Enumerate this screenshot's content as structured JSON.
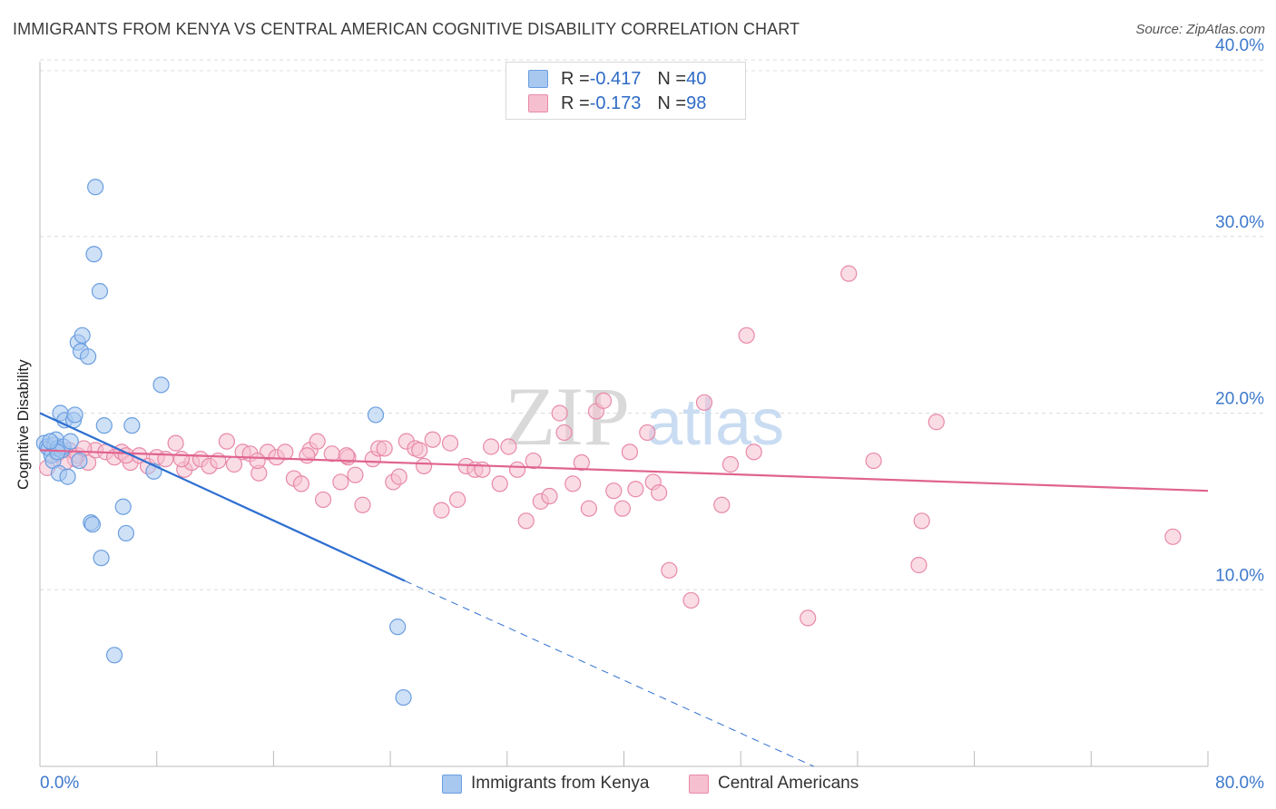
{
  "title": "IMMIGRANTS FROM KENYA VS CENTRAL AMERICAN COGNITIVE DISABILITY CORRELATION CHART",
  "source": "Source: ZipAtlas.com",
  "watermark": {
    "zip": "ZIP",
    "atlas": "atlas"
  },
  "legend_top": [
    {
      "r_label": "R = ",
      "r_value": "-0.417",
      "n_label": "N = ",
      "n_value": "40",
      "color": "#a8c8f0",
      "border": "#6a9ee0"
    },
    {
      "r_label": "R = ",
      "r_value": "-0.173",
      "n_label": "N = ",
      "n_value": "98",
      "color": "#f6bfd0",
      "border": "#e889a8"
    }
  ],
  "legend_bottom": [
    {
      "label": "Immigrants from Kenya",
      "color": "#a8c8f0",
      "border": "#6a9ee0"
    },
    {
      "label": "Central Americans",
      "color": "#f6bfd0",
      "border": "#e889a8"
    }
  ],
  "chart_data": {
    "type": "scatter",
    "title": "IMMIGRANTS FROM KENYA VS CENTRAL AMERICAN COGNITIVE DISABILITY CORRELATION CHART",
    "xlabel": "",
    "ylabel": "Cognitive Disability",
    "xlim": [
      0,
      80
    ],
    "ylim": [
      0,
      40
    ],
    "x_tick_labels": [
      "0.0%",
      "80.0%"
    ],
    "y_ticks": [
      10,
      20,
      30,
      40
    ],
    "y_tick_labels": [
      "10.0%",
      "20.0%",
      "30.0%",
      "40.0%"
    ],
    "grid": true,
    "legend": "top-center",
    "series": [
      {
        "name": "Immigrants from Kenya",
        "color": "#6a9ee0",
        "fill": "#a8c8f0",
        "trend": {
          "x0": 0,
          "y0": 20.0,
          "x1": 25,
          "y1": 10.5,
          "dash_to_x": 53,
          "dash_to_y": 0
        },
        "points": [
          [
            0.3,
            18.3
          ],
          [
            0.5,
            18.1
          ],
          [
            0.6,
            18.0
          ],
          [
            0.8,
            17.6
          ],
          [
            0.9,
            17.3
          ],
          [
            1.0,
            18.2
          ],
          [
            1.1,
            18.5
          ],
          [
            1.2,
            18.0
          ],
          [
            1.3,
            16.6
          ],
          [
            1.4,
            20.0
          ],
          [
            1.5,
            17.9
          ],
          [
            1.6,
            18.1
          ],
          [
            1.7,
            19.6
          ],
          [
            1.9,
            16.4
          ],
          [
            2.1,
            18.4
          ],
          [
            2.3,
            19.6
          ],
          [
            2.4,
            19.9
          ],
          [
            2.6,
            24.0
          ],
          [
            2.7,
            17.3
          ],
          [
            2.8,
            23.5
          ],
          [
            2.9,
            24.4
          ],
          [
            3.3,
            23.2
          ],
          [
            3.5,
            13.8
          ],
          [
            3.6,
            13.7
          ],
          [
            3.7,
            29.0
          ],
          [
            3.8,
            32.8
          ],
          [
            4.1,
            26.9
          ],
          [
            4.2,
            11.8
          ],
          [
            4.4,
            19.3
          ],
          [
            5.1,
            6.3
          ],
          [
            5.7,
            14.7
          ],
          [
            5.9,
            13.2
          ],
          [
            6.3,
            19.3
          ],
          [
            7.8,
            16.7
          ],
          [
            8.3,
            21.6
          ],
          [
            23.0,
            19.9
          ],
          [
            24.5,
            7.9
          ],
          [
            24.9,
            3.9
          ],
          [
            1.2,
            17.8
          ],
          [
            0.7,
            18.4
          ]
        ]
      },
      {
        "name": "Central Americans",
        "color": "#e889a8",
        "fill": "#f6bfd0",
        "trend": {
          "x0": 0,
          "y0": 17.9,
          "x1": 80,
          "y1": 15.6
        },
        "points": [
          [
            0.5,
            16.9
          ],
          [
            1.2,
            17.7
          ],
          [
            2.0,
            17.9
          ],
          [
            2.6,
            17.6
          ],
          [
            3.3,
            17.2
          ],
          [
            3.8,
            17.9
          ],
          [
            4.5,
            17.8
          ],
          [
            5.1,
            17.5
          ],
          [
            5.6,
            17.8
          ],
          [
            6.2,
            17.2
          ],
          [
            6.8,
            17.6
          ],
          [
            7.4,
            17.0
          ],
          [
            8.0,
            17.5
          ],
          [
            8.6,
            17.4
          ],
          [
            9.3,
            18.3
          ],
          [
            9.9,
            16.8
          ],
          [
            10.4,
            17.2
          ],
          [
            11.0,
            17.4
          ],
          [
            11.6,
            17.0
          ],
          [
            12.2,
            17.3
          ],
          [
            12.8,
            18.4
          ],
          [
            13.3,
            17.1
          ],
          [
            13.9,
            17.8
          ],
          [
            14.4,
            17.7
          ],
          [
            15.0,
            16.6
          ],
          [
            15.6,
            17.8
          ],
          [
            16.2,
            17.5
          ],
          [
            16.8,
            17.8
          ],
          [
            17.4,
            16.3
          ],
          [
            17.9,
            16.0
          ],
          [
            18.5,
            17.9
          ],
          [
            19.0,
            18.4
          ],
          [
            19.4,
            15.1
          ],
          [
            20.0,
            17.7
          ],
          [
            20.6,
            16.1
          ],
          [
            21.1,
            17.5
          ],
          [
            21.6,
            16.5
          ],
          [
            22.1,
            14.8
          ],
          [
            22.8,
            17.4
          ],
          [
            23.2,
            18.0
          ],
          [
            23.6,
            18.0
          ],
          [
            24.2,
            16.1
          ],
          [
            24.6,
            16.4
          ],
          [
            25.1,
            18.4
          ],
          [
            25.7,
            18.0
          ],
          [
            26.3,
            17.0
          ],
          [
            26.9,
            18.5
          ],
          [
            27.5,
            14.5
          ],
          [
            28.1,
            18.3
          ],
          [
            28.6,
            15.1
          ],
          [
            29.2,
            17.0
          ],
          [
            29.8,
            16.8
          ],
          [
            30.3,
            16.8
          ],
          [
            30.9,
            18.1
          ],
          [
            31.5,
            16.0
          ],
          [
            32.1,
            18.1
          ],
          [
            32.7,
            16.8
          ],
          [
            33.3,
            13.9
          ],
          [
            33.8,
            17.3
          ],
          [
            34.3,
            15.0
          ],
          [
            34.9,
            15.3
          ],
          [
            35.6,
            20.0
          ],
          [
            35.9,
            18.9
          ],
          [
            36.5,
            16.0
          ],
          [
            37.1,
            17.2
          ],
          [
            37.6,
            14.6
          ],
          [
            38.1,
            20.1
          ],
          [
            38.6,
            20.7
          ],
          [
            39.3,
            15.6
          ],
          [
            39.9,
            14.6
          ],
          [
            40.4,
            17.8
          ],
          [
            40.8,
            15.7
          ],
          [
            41.6,
            18.9
          ],
          [
            42.0,
            16.1
          ],
          [
            42.4,
            15.5
          ],
          [
            43.1,
            11.1
          ],
          [
            44.6,
            9.4
          ],
          [
            45.5,
            20.6
          ],
          [
            46.7,
            14.8
          ],
          [
            47.3,
            17.1
          ],
          [
            48.4,
            24.4
          ],
          [
            48.9,
            17.8
          ],
          [
            52.6,
            8.4
          ],
          [
            55.4,
            27.9
          ],
          [
            57.1,
            17.3
          ],
          [
            60.2,
            11.4
          ],
          [
            60.4,
            13.9
          ],
          [
            61.4,
            19.5
          ],
          [
            77.6,
            13.0
          ],
          [
            2.4,
            17.4
          ],
          [
            1.7,
            17.2
          ],
          [
            3.0,
            18.0
          ],
          [
            5.9,
            17.6
          ],
          [
            9.7,
            17.4
          ],
          [
            14.9,
            17.3
          ],
          [
            18.3,
            17.6
          ],
          [
            21.0,
            17.6
          ],
          [
            26.0,
            17.9
          ]
        ]
      }
    ]
  }
}
